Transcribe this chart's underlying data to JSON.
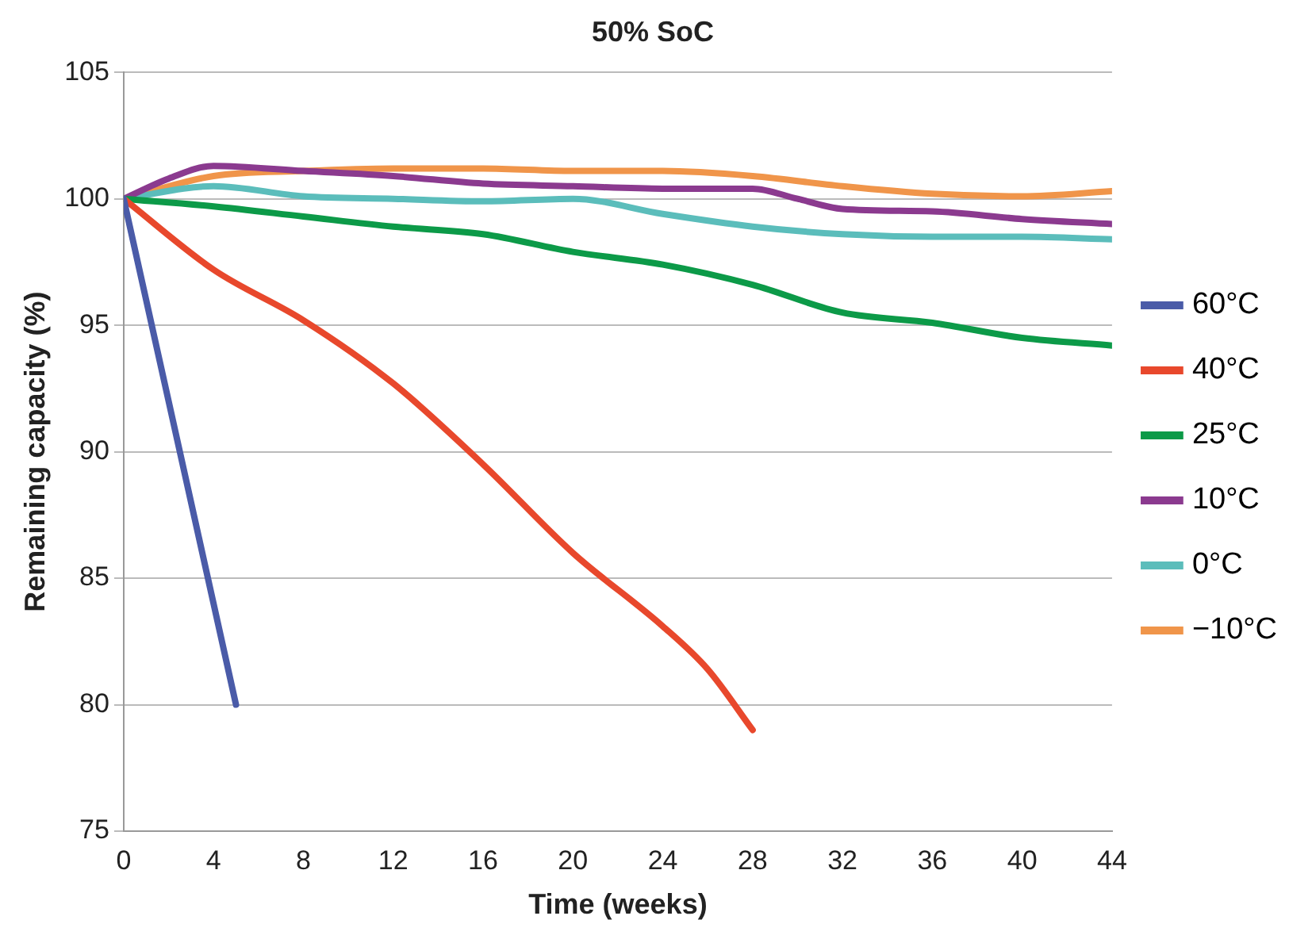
{
  "chart_data": {
    "type": "line",
    "title": "50% SoC",
    "xlabel": "Time (weeks)",
    "ylabel": "Remaining capacity (%)",
    "xlim": [
      0,
      44
    ],
    "xticks": [
      0,
      4,
      8,
      12,
      16,
      20,
      24,
      28,
      32,
      36,
      40,
      44
    ],
    "ylim": [
      75,
      105
    ],
    "yticks": [
      75,
      80,
      85,
      90,
      95,
      100,
      105
    ],
    "grid": "y",
    "legend": "right",
    "marker": "none",
    "line_style": "solid",
    "series": [
      {
        "name": "60°C",
        "color": "#4a5ba8",
        "x": [
          0,
          5
        ],
        "values": [
          100,
          80
        ]
      },
      {
        "name": "40°C",
        "color": "#e8482c",
        "x": [
          0,
          4,
          8,
          12,
          16,
          20,
          24,
          26,
          28
        ],
        "values": [
          100,
          97.2,
          95.2,
          92.7,
          89.5,
          86,
          83.1,
          81.4,
          79
        ]
      },
      {
        "name": "25°C",
        "color": "#0c9a48",
        "x": [
          0,
          4,
          8,
          12,
          16,
          20,
          24,
          28,
          32,
          36,
          40,
          44
        ],
        "values": [
          100,
          99.7,
          99.3,
          98.9,
          98.6,
          97.9,
          97.4,
          96.6,
          95.5,
          95.1,
          94.5,
          94.2
        ]
      },
      {
        "name": "10°C",
        "color": "#8b3a8f",
        "x": [
          0,
          2,
          4,
          8,
          12,
          16,
          20,
          24,
          28,
          30,
          32,
          36,
          40,
          44
        ],
        "values": [
          100,
          100.8,
          101.3,
          101.1,
          100.9,
          100.6,
          100.5,
          100.4,
          100.4,
          100,
          99.6,
          99.5,
          99.2,
          99
        ]
      },
      {
        "name": "0°C",
        "color": "#5bbdbb",
        "x": [
          0,
          4,
          8,
          12,
          16,
          20,
          24,
          28,
          32,
          36,
          40,
          44
        ],
        "values": [
          100,
          100.5,
          100.1,
          100,
          99.9,
          100,
          99.4,
          98.9,
          98.6,
          98.5,
          98.5,
          98.4
        ]
      },
      {
        "name": "−10°C",
        "color": "#f0954a",
        "x": [
          0,
          4,
          8,
          12,
          16,
          20,
          24,
          28,
          32,
          36,
          40,
          44
        ],
        "values": [
          100,
          100.9,
          101.1,
          101.2,
          101.2,
          101.1,
          101.1,
          100.9,
          100.5,
          100.2,
          100.1,
          100.3
        ]
      }
    ]
  }
}
